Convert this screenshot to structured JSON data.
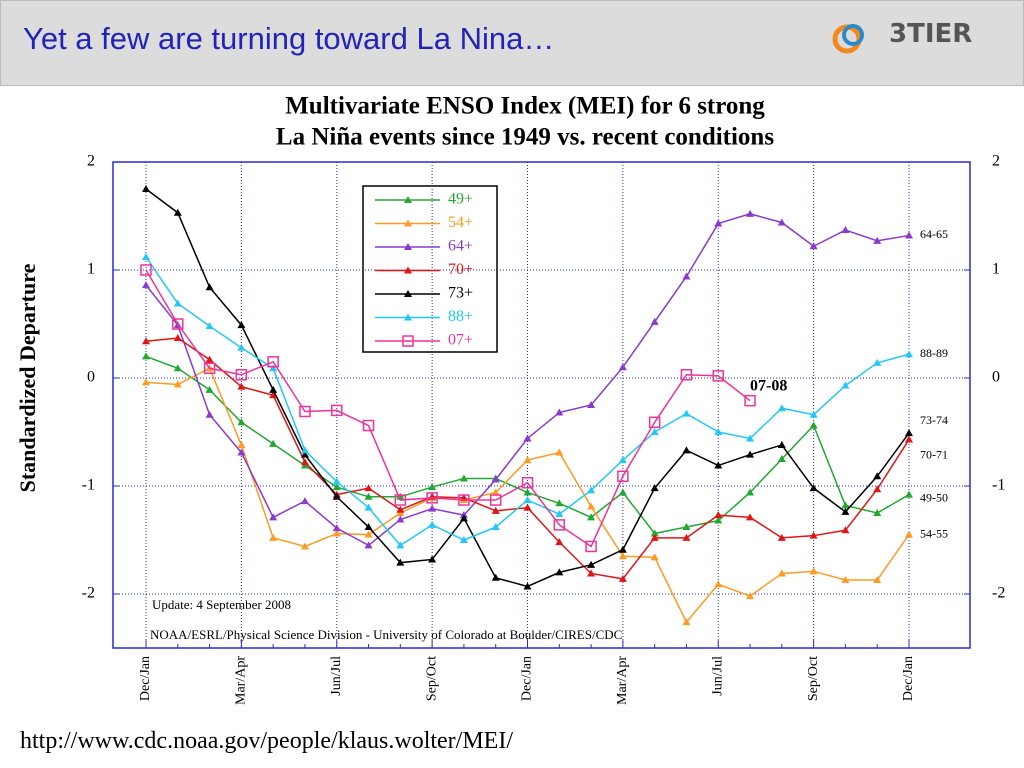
{
  "header": {
    "title": "Yet a few are turning toward La Nina…",
    "logo": "3TIER"
  },
  "footer": {
    "url": "http://www.cdc.noaa.gov/people/klaus.wolter/MEI/"
  },
  "chart_data": {
    "type": "line",
    "title": [
      "Multivariate ENSO Index (MEI) for 6 strong",
      "La Niña events since 1949 vs. recent conditions"
    ],
    "y_label": "Standardized Departure",
    "notes": [
      "Update: 4 September 2008",
      "NOAA/ESRL/Physical Science Division - University of Colorado at Boulder/CIRES/CDC"
    ],
    "categories": [
      "Dec/Jan",
      null,
      null,
      "Mar/Apr",
      null,
      null,
      "Jun/Jul",
      null,
      null,
      "Sep/Oct",
      null,
      null,
      "Dec/Jan",
      null,
      null,
      "Mar/Apr",
      null,
      null,
      "Jun/Jul",
      null,
      null,
      "Sep/Oct",
      null,
      null,
      "Dec/Jan"
    ],
    "ylim": [
      -2.5,
      2
    ],
    "yticks": [
      2,
      1,
      0,
      -1,
      -2
    ],
    "grid": true,
    "series": [
      {
        "name": "49+",
        "color": "#22a830",
        "marker": "triangle",
        "end_label": "49-50",
        "values": [
          0.2,
          0.09,
          -0.11,
          -0.41,
          -0.61,
          -0.81,
          -1.01,
          -1.1,
          -1.1,
          -1.01,
          -0.93,
          -0.93,
          -1.06,
          -1.16,
          -1.29,
          -1.06,
          -1.44,
          -1.38,
          -1.32,
          -1.06,
          -0.75,
          -0.44,
          -1.18,
          -1.25,
          -1.08
        ]
      },
      {
        "name": "54+",
        "color": "#ff9a22",
        "marker": "triangle",
        "end_label": "54-55",
        "values": [
          -0.04,
          -0.06,
          0.09,
          -0.62,
          -1.48,
          -1.56,
          -1.44,
          -1.45,
          -1.25,
          -1.11,
          -1.13,
          -1.06,
          -0.76,
          -0.69,
          -1.19,
          -1.65,
          -1.66,
          -2.26,
          -1.91,
          -2.02,
          -1.81,
          -1.79,
          -1.87,
          -1.87,
          -1.45
        ]
      },
      {
        "name": "64+",
        "color": "#8a3ad0",
        "marker": "triangle",
        "end_label": "64-65",
        "values": [
          0.86,
          0.49,
          -0.34,
          -0.69,
          -1.29,
          -1.14,
          -1.39,
          -1.55,
          -1.31,
          -1.21,
          -1.27,
          -0.94,
          -0.56,
          -0.32,
          -0.25,
          0.1,
          0.52,
          0.94,
          1.43,
          1.52,
          1.44,
          1.22,
          1.37,
          1.27,
          1.32
        ]
      },
      {
        "name": "70+",
        "color": "#e01515",
        "marker": "triangle",
        "end_label": "70-71",
        "values": [
          0.34,
          0.37,
          0.17,
          -0.08,
          -0.16,
          -0.78,
          -1.08,
          -1.02,
          -1.22,
          -1.1,
          -1.11,
          -1.23,
          -1.2,
          -1.52,
          -1.81,
          -1.86,
          -1.48,
          -1.48,
          -1.27,
          -1.29,
          -1.48,
          -1.46,
          -1.41,
          -1.03,
          -0.57
        ]
      },
      {
        "name": "73+",
        "color": "#000000",
        "marker": "triangle",
        "end_label": "73-74",
        "values": [
          1.75,
          1.53,
          0.84,
          0.49,
          -0.11,
          -0.71,
          -1.1,
          -1.38,
          -1.71,
          -1.68,
          -1.3,
          -1.85,
          -1.93,
          -1.8,
          -1.73,
          -1.59,
          -1.02,
          -0.67,
          -0.81,
          -0.71,
          -0.62,
          -1.02,
          -1.24,
          -0.91,
          -0.51
        ]
      },
      {
        "name": "88+",
        "color": "#22c8f8",
        "marker": "triangle",
        "end_label": "88-89",
        "values": [
          1.12,
          0.69,
          0.48,
          0.28,
          0.09,
          -0.67,
          -0.96,
          -1.2,
          -1.55,
          -1.36,
          -1.5,
          -1.38,
          -1.13,
          -1.26,
          -1.04,
          -0.76,
          -0.5,
          -0.33,
          -0.5,
          -0.56,
          -0.28,
          -0.34,
          -0.07,
          0.14,
          0.22
        ]
      },
      {
        "name": "07+",
        "color": "#ee3399",
        "marker": "square",
        "end_label": "07-08",
        "values": [
          1.0,
          0.5,
          0.09,
          0.03,
          0.15,
          -0.31,
          -0.3,
          -0.44,
          -1.13,
          -1.11,
          -1.13,
          -1.13,
          -0.97,
          -1.36,
          -1.56,
          -0.91,
          -0.41,
          0.03,
          0.02,
          -0.21,
          null,
          null,
          null,
          null,
          null
        ]
      }
    ]
  }
}
